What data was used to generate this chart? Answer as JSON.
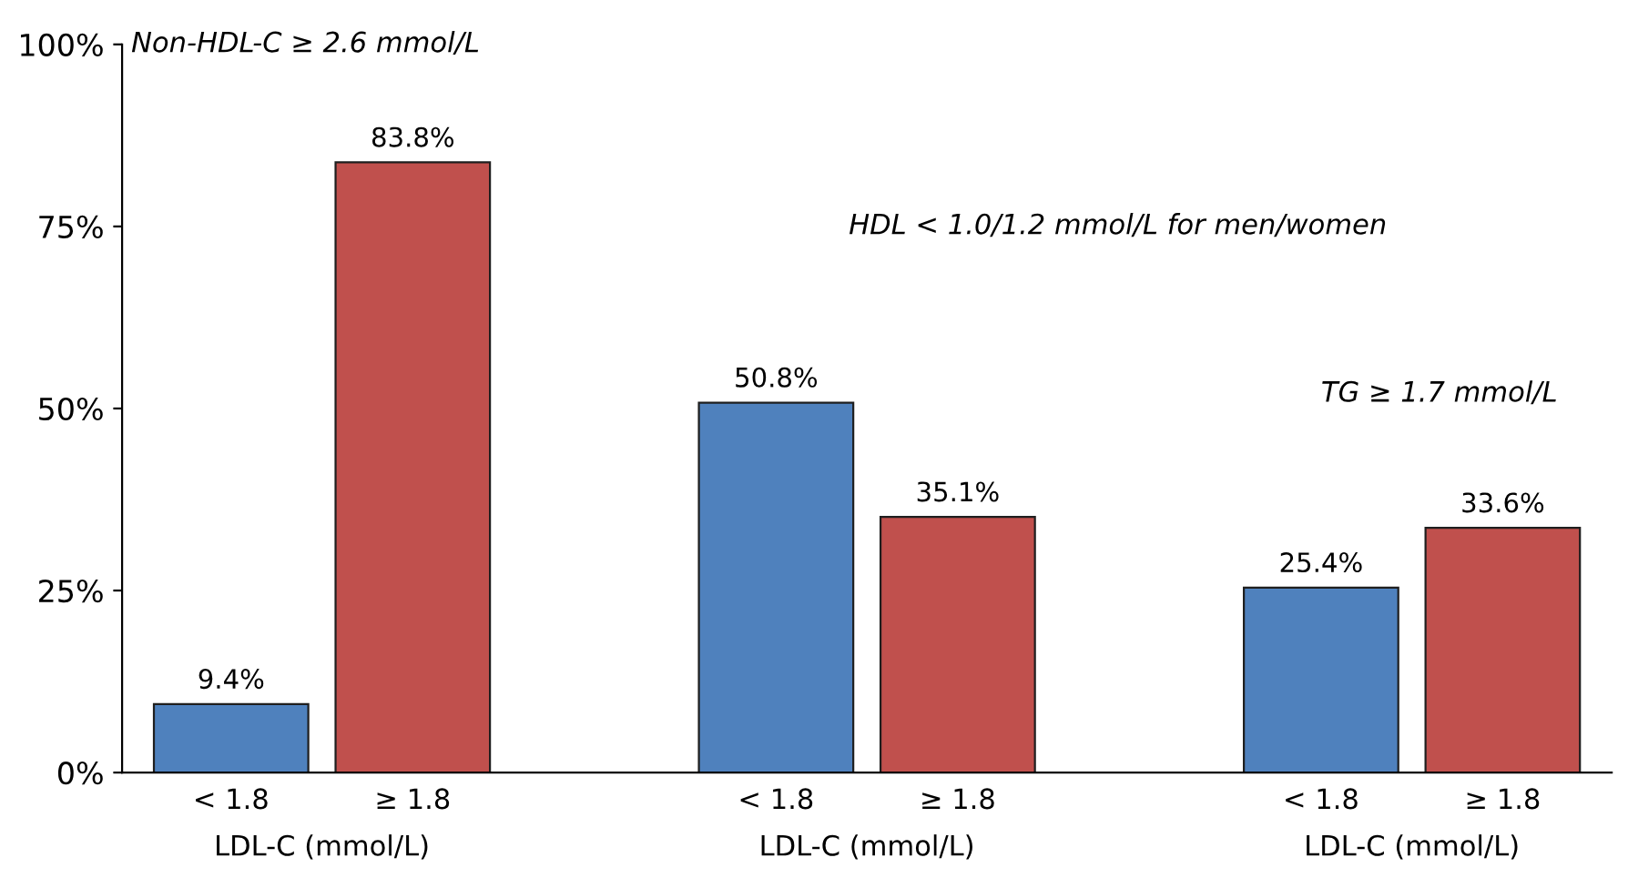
{
  "chart_data": {
    "type": "bar",
    "categories": [
      "< 1.8",
      "≥ 1.8",
      null,
      "< 1.8",
      "≥ 1.8",
      null,
      "< 1.8",
      "≥ 1.8"
    ],
    "values": [
      9.4,
      83.8,
      null,
      50.8,
      35.1,
      null,
      25.4,
      33.6
    ],
    "colors": [
      "#4f81bd",
      "#c0504d",
      null,
      "#4f81bd",
      "#c0504d",
      null,
      "#4f81bd",
      "#c0504d"
    ],
    "value_labels": [
      "9.4%",
      "83.8%",
      null,
      "50.8%",
      "35.1%",
      null,
      "25.4%",
      "33.6%"
    ],
    "ylim": [
      0,
      100
    ],
    "yticks": [
      {
        "value": 0,
        "label": "0%"
      },
      {
        "value": 25,
        "label": "25%"
      },
      {
        "value": 50,
        "label": "50%"
      },
      {
        "value": 75,
        "label": "75%"
      },
      {
        "value": 100,
        "label": "100%"
      }
    ],
    "annotations": [
      "LDL-C (mmol/L)",
      "LDL-C (mmol/L)",
      "LDL-C (mmol/L)",
      "Non-HDL-C ≥ 2.6 mmol/L",
      "HDL < 1.0/1.2 mmol/L for men/women",
      "TG ≥ 1.7 mmol/L"
    ],
    "grid": false,
    "legend": false
  }
}
